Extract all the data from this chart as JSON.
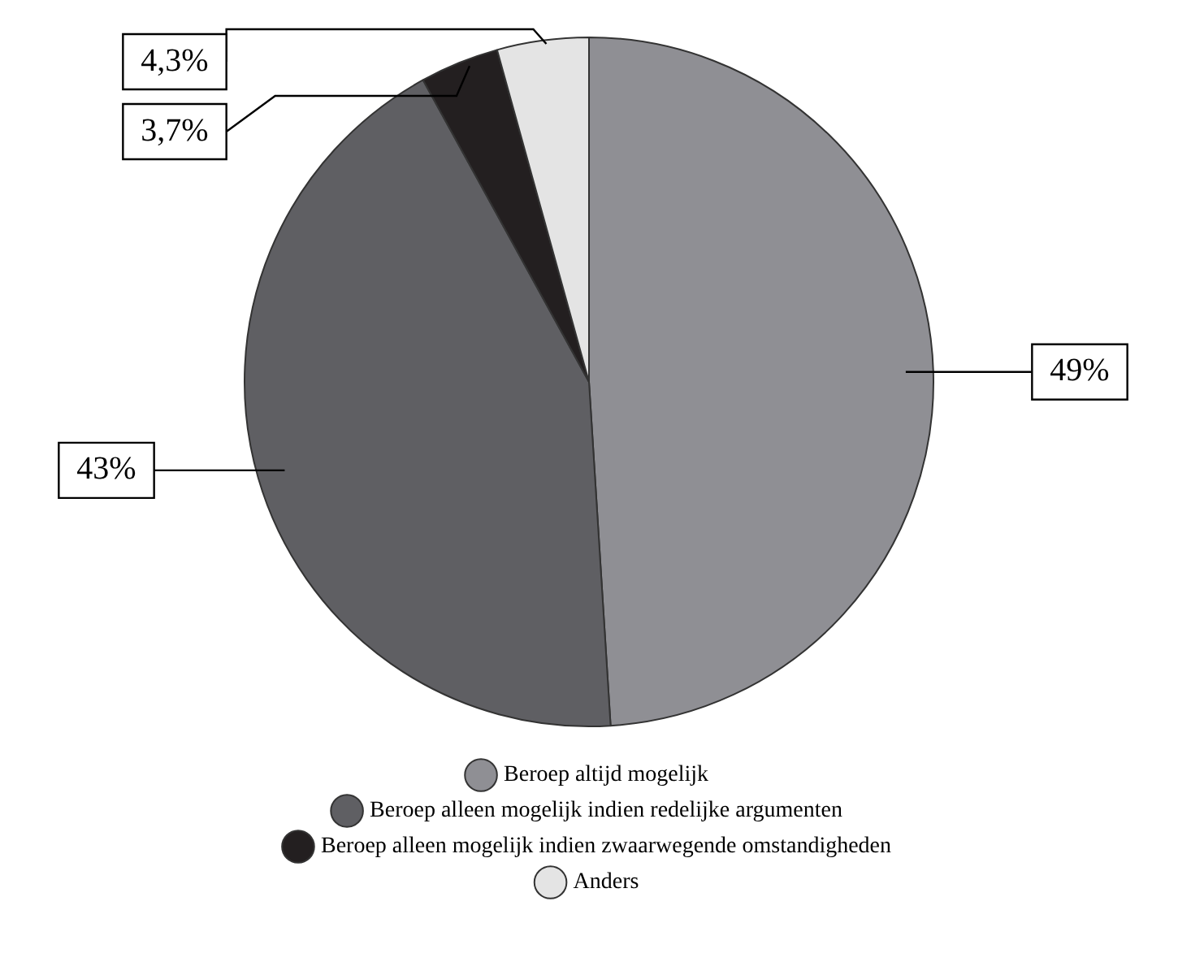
{
  "chart_data": {
    "type": "pie",
    "categories": [
      "Beroep altijd mogelijk",
      "Beroep alleen mogelijk indien redelijke argumenten",
      "Beroep alleen mogelijk indien zwaarwegende omstandigheden",
      "Anders"
    ],
    "values": [
      49,
      43,
      3.7,
      4.3
    ],
    "colors": [
      "#8f8f94",
      "#5f5f63",
      "#231f20",
      "#e4e4e4"
    ],
    "value_labels": [
      "49%",
      "43%",
      "3,7%",
      "4,3%"
    ],
    "legend": "bottom"
  }
}
